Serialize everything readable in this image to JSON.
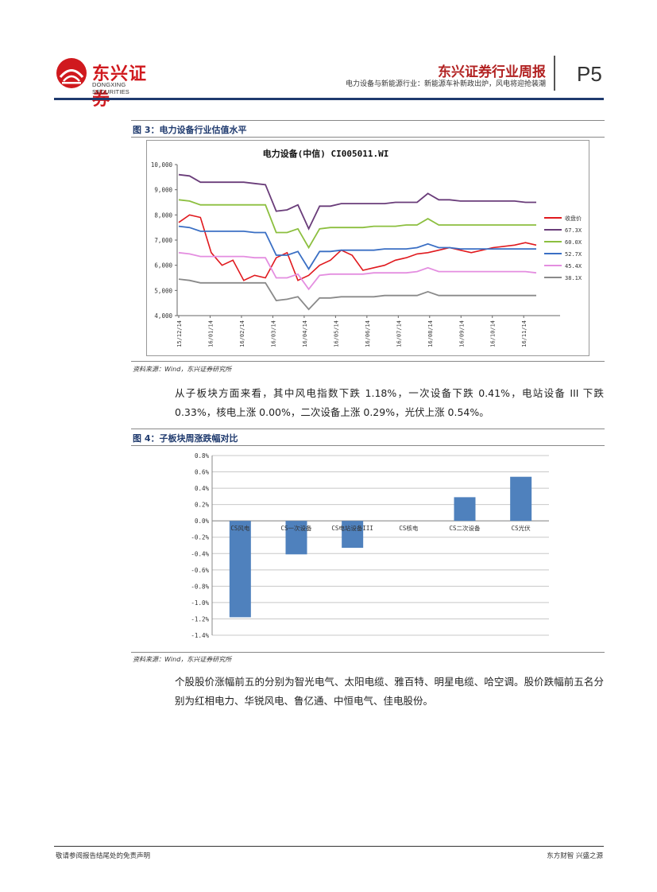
{
  "header": {
    "logo_cn": "东兴证券",
    "logo_en": "DONGXING SECURITIES",
    "report_title": "东兴证券行业周报",
    "subtitle": "电力设备与新能源行业：新能源车补新政出炉，风电将迎抢装潮",
    "page": "P5"
  },
  "figure3": {
    "label": "图 3：电力设备行业估值水平",
    "source": "资料来源：Wind，东兴证券研究所",
    "chart_data": {
      "type": "line",
      "title": "电力设备(中信) CI005011.WI",
      "ylim": [
        4000,
        10000
      ],
      "y_ticks": [
        "4,000",
        "5,000",
        "6,000",
        "7,000",
        "8,000",
        "9,000",
        "10,000"
      ],
      "x_ticks": [
        "15/12/14",
        "16/01/14",
        "16/02/14",
        "16/03/14",
        "16/04/14",
        "16/05/14",
        "16/06/14",
        "16/07/14",
        "16/08/14",
        "16/09/14",
        "16/10/14",
        "16/11/14"
      ],
      "legend_position": "right",
      "series": [
        {
          "name": "收盘价",
          "color": "#e0191e",
          "values": [
            7700,
            8000,
            7900,
            6500,
            6000,
            6200,
            5400,
            5600,
            5500,
            6300,
            6500,
            5400,
            5600,
            6000,
            6200,
            6600,
            6400,
            5800,
            5900,
            6000,
            6200,
            6300,
            6450,
            6500,
            6600,
            6700,
            6600,
            6500,
            6600,
            6700,
            6750,
            6800,
            6900,
            6800
          ]
        },
        {
          "name": "67.3X",
          "color": "#6a3d7a",
          "values": [
            9600,
            9550,
            9300,
            9300,
            9300,
            9300,
            9300,
            9250,
            9200,
            8150,
            8200,
            8400,
            7450,
            8350,
            8350,
            8450,
            8450,
            8450,
            8450,
            8450,
            8500,
            8500,
            8500,
            8850,
            8600,
            8600,
            8550,
            8550,
            8550,
            8550,
            8550,
            8550,
            8500,
            8500
          ]
        },
        {
          "name": "60.0X",
          "color": "#8cbf3f",
          "values": [
            8600,
            8550,
            8400,
            8400,
            8400,
            8400,
            8400,
            8400,
            8400,
            7300,
            7300,
            7450,
            6700,
            7450,
            7500,
            7500,
            7500,
            7500,
            7550,
            7550,
            7550,
            7600,
            7600,
            7850,
            7600,
            7600,
            7600,
            7600,
            7600,
            7600,
            7600,
            7600,
            7600,
            7600
          ]
        },
        {
          "name": "52.7X",
          "color": "#3a6fc4",
          "values": [
            7550,
            7500,
            7350,
            7350,
            7350,
            7350,
            7350,
            7300,
            7300,
            6400,
            6400,
            6550,
            5850,
            6550,
            6550,
            6600,
            6600,
            6600,
            6600,
            6650,
            6650,
            6650,
            6700,
            6850,
            6700,
            6700,
            6650,
            6650,
            6650,
            6650,
            6650,
            6650,
            6650,
            6650
          ]
        },
        {
          "name": "45.4X",
          "color": "#e48ee0",
          "values": [
            6500,
            6450,
            6350,
            6350,
            6350,
            6350,
            6350,
            6300,
            6300,
            5500,
            5500,
            5650,
            5050,
            5600,
            5650,
            5650,
            5650,
            5650,
            5700,
            5700,
            5700,
            5700,
            5750,
            5900,
            5750,
            5750,
            5750,
            5750,
            5750,
            5750,
            5750,
            5750,
            5750,
            5700
          ]
        },
        {
          "name": "38.1X",
          "color": "#8a8a8a",
          "values": [
            5450,
            5400,
            5300,
            5300,
            5300,
            5300,
            5300,
            5300,
            5300,
            4600,
            4650,
            4750,
            4250,
            4700,
            4700,
            4750,
            4750,
            4750,
            4750,
            4800,
            4800,
            4800,
            4800,
            4950,
            4800,
            4800,
            4800,
            4800,
            4800,
            4800,
            4800,
            4800,
            4800,
            4800
          ]
        }
      ]
    }
  },
  "paragraph1": "从子板块方面来看，其中风电指数下跌 1.18%，一次设备下跌 0.41%，电站设备 III 下跌 0.33%，核电上涨 0.00%，二次设备上涨 0.29%，光伏上涨 0.54%。",
  "figure4": {
    "label": "图 4：子板块周涨跌幅对比",
    "source": "资料来源：Wind，东兴证券研究所",
    "chart_data": {
      "type": "bar",
      "categories": [
        "CS风电",
        "CS一次设备",
        "CS电站设备III",
        "CS核电",
        "CS二次设备",
        "CS光伏"
      ],
      "values": [
        -1.18,
        -0.41,
        -0.33,
        0.0,
        0.29,
        0.54
      ],
      "ylim": [
        -1.4,
        0.8
      ],
      "y_ticks": [
        "0.8%",
        "0.6%",
        "0.4%",
        "0.2%",
        "0.0%",
        "-0.2%",
        "-0.4%",
        "-0.6%",
        "-0.8%",
        "-1.0%",
        "-1.2%",
        "-1.4%"
      ],
      "bar_color": "#4f81bd"
    }
  },
  "paragraph2": "个股股价涨幅前五的分别为智光电气、太阳电缆、雅百特、明星电缆、哈空调。股价跌幅前五名分别为红相电力、华锐风电、鲁亿通、中恒电气、佳电股份。",
  "footer": {
    "left": "敬请参阅报告结尾处的免责声明",
    "right": "东方财智 兴盛之源"
  }
}
